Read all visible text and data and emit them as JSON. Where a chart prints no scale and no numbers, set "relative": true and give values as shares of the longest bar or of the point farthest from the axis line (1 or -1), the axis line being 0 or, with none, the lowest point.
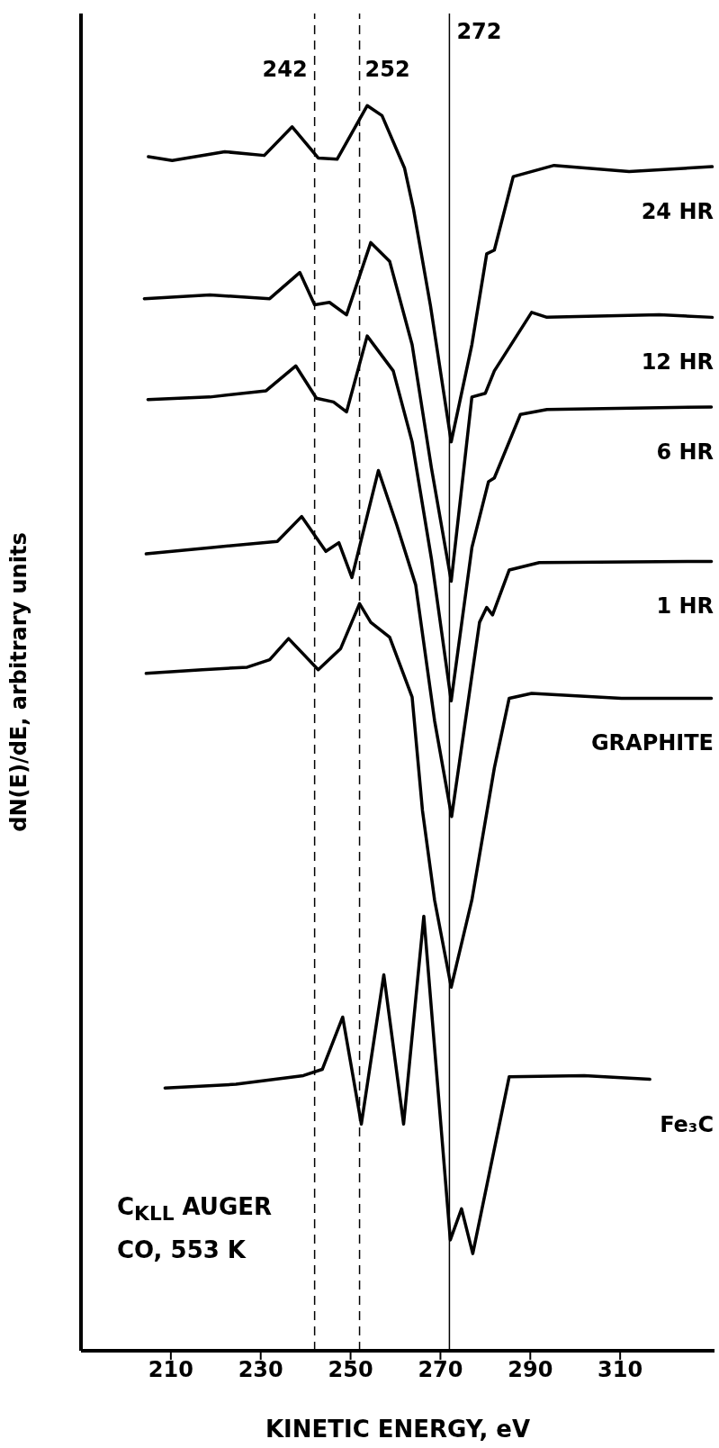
{
  "chart_data": {
    "type": "line",
    "relative": true,
    "xlabel": "KINETIC ENERGY, eV",
    "ylabel": "dN(E)/dE, arbitrary units",
    "xlim": [
      190,
      331
    ],
    "xticks": [
      210,
      230,
      250,
      270,
      290,
      310
    ],
    "marker": "none",
    "line_style": "solid",
    "series": [
      {
        "name": "24 HR",
        "color": "#000000",
        "x": [
          205,
          210.3,
          222,
          230.8,
          237,
          242.8,
          247,
          253.7,
          257,
          262,
          264,
          267.8,
          272.4,
          277,
          280.3,
          282,
          286.2,
          295.3,
          312,
          330.5
        ],
        "values": [
          0.959,
          0.956,
          0.963,
          0.96,
          0.983,
          0.958,
          0.957,
          1.0,
          0.992,
          0.95,
          0.917,
          0.839,
          0.73,
          0.808,
          0.881,
          0.884,
          0.943,
          0.952,
          0.947,
          0.951
        ]
      },
      {
        "name": "12 HR",
        "color": "#000000",
        "x": [
          204.1,
          218.7,
          232,
          238.7,
          242,
          245.3,
          249.1,
          254.5,
          258.7,
          263.7,
          268,
          272.4,
          277,
          280,
          282,
          290.3,
          293.7,
          318.7,
          330.5
        ],
        "values": [
          0.845,
          0.848,
          0.845,
          0.866,
          0.84,
          0.842,
          0.832,
          0.89,
          0.875,
          0.808,
          0.709,
          0.618,
          0.766,
          0.769,
          0.787,
          0.834,
          0.83,
          0.832,
          0.83
        ]
      },
      {
        "name": "6 HR",
        "color": "#000000",
        "x": [
          204.9,
          218.7,
          231.2,
          237.8,
          242.4,
          246.2,
          249.1,
          253.7,
          259.5,
          263.7,
          268,
          272.4,
          277,
          280.7,
          282,
          287.8,
          293.7,
          330.3
        ],
        "values": [
          0.764,
          0.766,
          0.771,
          0.791,
          0.765,
          0.762,
          0.754,
          0.815,
          0.787,
          0.73,
          0.636,
          0.522,
          0.645,
          0.698,
          0.701,
          0.752,
          0.756,
          0.758
        ]
      },
      {
        "name": "1 HR",
        "color": "#000000",
        "x": [
          204.5,
          218.7,
          233.7,
          239.1,
          244.5,
          247.4,
          250.3,
          256.2,
          260.3,
          264.5,
          268.7,
          272.5,
          278.7,
          280.3,
          281.6,
          285.3,
          292,
          330.3
        ],
        "values": [
          0.64,
          0.645,
          0.65,
          0.67,
          0.642,
          0.649,
          0.621,
          0.707,
          0.663,
          0.615,
          0.506,
          0.429,
          0.585,
          0.597,
          0.591,
          0.627,
          0.633,
          0.634
        ]
      },
      {
        "name": "GRAPHITE",
        "color": "#000000",
        "x": [
          204.5,
          217,
          227,
          232,
          236.2,
          242.8,
          247.8,
          252,
          254.5,
          258.7,
          263.7,
          266,
          268.7,
          272.4,
          277,
          282,
          285.3,
          290.3,
          310.3,
          330.3
        ],
        "values": [
          0.544,
          0.547,
          0.549,
          0.555,
          0.572,
          0.547,
          0.564,
          0.6,
          0.585,
          0.573,
          0.525,
          0.434,
          0.362,
          0.292,
          0.362,
          0.468,
          0.524,
          0.528,
          0.524,
          0.524
        ]
      },
      {
        "name": "Fe₃C",
        "color": "#000000",
        "x": [
          208.7,
          224.5,
          239.5,
          243.7,
          248.25,
          252.4,
          257.4,
          261.8,
          266.3,
          272.2,
          274.7,
          277.2,
          285.3,
          302,
          316.6
        ],
        "values": [
          0.211,
          0.214,
          0.221,
          0.226,
          0.268,
          0.182,
          0.302,
          0.182,
          0.349,
          0.089,
          0.114,
          0.078,
          0.22,
          0.221,
          0.218
        ]
      }
    ],
    "ref_lines": [
      {
        "axis": "x",
        "value": 242,
        "label": "242",
        "line_style": "dashed"
      },
      {
        "axis": "x",
        "value": 252,
        "label": "252",
        "line_style": "dashed"
      },
      {
        "axis": "x",
        "value": 272,
        "label": "272",
        "line_style": "solid"
      }
    ],
    "annotations": [
      "C$_{KLL}$ AUGER",
      "CO, 553 K"
    ]
  }
}
